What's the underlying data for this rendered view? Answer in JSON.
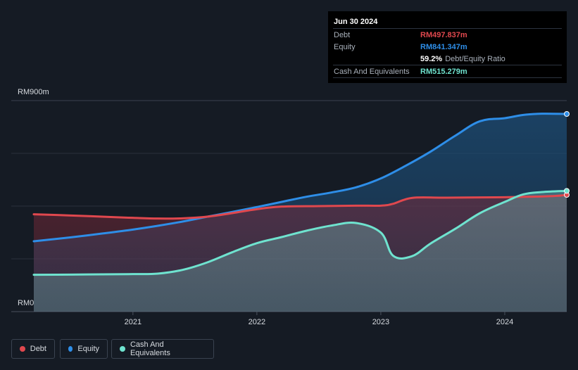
{
  "tooltip": {
    "date": "Jun 30 2024",
    "rows": [
      {
        "label": "Debt",
        "value": "RM497.837m",
        "color": "#e0484e"
      },
      {
        "label": "Equity",
        "value": "RM841.347m",
        "color": "#2e8ee8"
      },
      {
        "label": "",
        "value": "59.2%",
        "sub": "Debt/Equity Ratio",
        "color": "#ffffff"
      },
      {
        "label": "Cash And Equivalents",
        "value": "RM515.279m",
        "color": "#6fe3cf"
      }
    ]
  },
  "colors": {
    "debt": "#e0484e",
    "equity": "#2e8ee8",
    "cash": "#6fe3cf"
  },
  "legend": [
    {
      "label": "Debt",
      "color": "#e0484e"
    },
    {
      "label": "Equity",
      "color": "#2e8ee8"
    },
    {
      "label": "Cash And Equivalents",
      "color": "#6fe3cf"
    }
  ],
  "chart_data": {
    "type": "area",
    "title": "",
    "xlabel": "",
    "ylabel": "",
    "ylim": [
      0,
      900
    ],
    "xlim": [
      2020.2,
      2024.5
    ],
    "y_tick_labels": [
      "RM0",
      "RM900m"
    ],
    "x_ticks": [
      2021,
      2022,
      2023,
      2024
    ],
    "x_tick_labels": [
      "2021",
      "2022",
      "2023",
      "2024"
    ],
    "series": [
      {
        "name": "Debt",
        "key": "debt",
        "x": [
          2020.2,
          2020.5,
          2020.75,
          2021.0,
          2021.2,
          2021.4,
          2021.6,
          2021.8,
          2022.0,
          2022.2,
          2022.5,
          2022.8,
          2023.0,
          2023.1,
          2023.25,
          2023.5,
          2023.8,
          2024.0,
          2024.2,
          2024.4,
          2024.5
        ],
        "values": [
          415,
          410,
          405,
          400,
          397,
          398,
          405,
          420,
          437,
          448,
          450,
          452,
          452,
          460,
          485,
          486,
          487,
          488,
          490,
          493,
          498
        ]
      },
      {
        "name": "Equity",
        "key": "equity",
        "x": [
          2020.2,
          2020.5,
          2020.75,
          2021.0,
          2021.2,
          2021.4,
          2021.6,
          2021.8,
          2022.0,
          2022.2,
          2022.4,
          2022.6,
          2022.8,
          2023.0,
          2023.2,
          2023.4,
          2023.6,
          2023.8,
          2024.0,
          2024.15,
          2024.3,
          2024.5
        ],
        "values": [
          300,
          317,
          333,
          350,
          366,
          384,
          405,
          425,
          446,
          468,
          490,
          508,
          530,
          568,
          622,
          682,
          750,
          812,
          825,
          839,
          844,
          843
        ]
      },
      {
        "name": "Cash And Equivalents",
        "key": "cash",
        "x": [
          2020.2,
          2020.5,
          2020.75,
          2021.0,
          2021.2,
          2021.4,
          2021.6,
          2021.8,
          2022.0,
          2022.2,
          2022.4,
          2022.6,
          2022.8,
          2023.0,
          2023.1,
          2023.25,
          2023.4,
          2023.6,
          2023.8,
          2024.0,
          2024.15,
          2024.3,
          2024.5
        ],
        "values": [
          157,
          158,
          159,
          160,
          162,
          178,
          210,
          253,
          292,
          318,
          345,
          367,
          378,
          337,
          238,
          236,
          290,
          353,
          420,
          468,
          500,
          510,
          515
        ]
      }
    ],
    "highlight_x": 2024.5
  }
}
